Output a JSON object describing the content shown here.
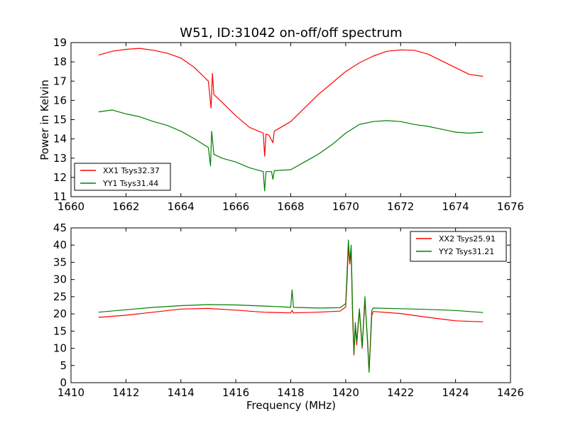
{
  "chart_data": [
    {
      "type": "line",
      "title": "W51, ID:31042 on-off/off spectrum",
      "xlabel": "",
      "ylabel": "Power in Kelvin",
      "xlim": [
        1660,
        1676
      ],
      "ylim": [
        11,
        19
      ],
      "xticks": [
        "1660",
        "1662",
        "1664",
        "1666",
        "1668",
        "1670",
        "1672",
        "1674",
        "1676"
      ],
      "yticks": [
        "11",
        "12",
        "13",
        "14",
        "15",
        "16",
        "17",
        "18",
        "19"
      ],
      "legend_position": "lower-left",
      "grid": false,
      "series": [
        {
          "name": "XX1 Tsys32.37",
          "color": "#ff0000",
          "points": [
            [
              1661.0,
              18.35
            ],
            [
              1661.5,
              18.55
            ],
            [
              1662.0,
              18.65
            ],
            [
              1662.5,
              18.7
            ],
            [
              1663.0,
              18.6
            ],
            [
              1663.5,
              18.45
            ],
            [
              1664.0,
              18.2
            ],
            [
              1664.5,
              17.7
            ],
            [
              1665.0,
              17.0
            ],
            [
              1665.1,
              15.6
            ],
            [
              1665.15,
              17.4
            ],
            [
              1665.2,
              16.3
            ],
            [
              1665.5,
              15.9
            ],
            [
              1666.0,
              15.2
            ],
            [
              1666.5,
              14.6
            ],
            [
              1667.0,
              14.3
            ],
            [
              1667.05,
              13.1
            ],
            [
              1667.1,
              14.25
            ],
            [
              1667.2,
              14.2
            ],
            [
              1667.35,
              13.8
            ],
            [
              1667.4,
              14.4
            ],
            [
              1668.0,
              14.9
            ],
            [
              1668.5,
              15.6
            ],
            [
              1669.0,
              16.3
            ],
            [
              1669.5,
              16.9
            ],
            [
              1670.0,
              17.5
            ],
            [
              1670.5,
              17.95
            ],
            [
              1671.0,
              18.3
            ],
            [
              1671.5,
              18.55
            ],
            [
              1672.0,
              18.62
            ],
            [
              1672.5,
              18.6
            ],
            [
              1673.0,
              18.4
            ],
            [
              1673.5,
              18.05
            ],
            [
              1674.0,
              17.7
            ],
            [
              1674.5,
              17.35
            ],
            [
              1675.0,
              17.25
            ]
          ]
        },
        {
          "name": "YY1 Tsys31.44",
          "color": "#008000",
          "points": [
            [
              1661.0,
              15.4
            ],
            [
              1661.5,
              15.5
            ],
            [
              1662.0,
              15.3
            ],
            [
              1662.5,
              15.15
            ],
            [
              1663.0,
              14.9
            ],
            [
              1663.5,
              14.7
            ],
            [
              1664.0,
              14.4
            ],
            [
              1664.5,
              14.0
            ],
            [
              1665.0,
              13.55
            ],
            [
              1665.08,
              12.6
            ],
            [
              1665.12,
              14.4
            ],
            [
              1665.2,
              13.2
            ],
            [
              1665.5,
              13.0
            ],
            [
              1666.0,
              12.8
            ],
            [
              1666.5,
              12.5
            ],
            [
              1667.0,
              12.3
            ],
            [
              1667.05,
              11.3
            ],
            [
              1667.1,
              12.3
            ],
            [
              1667.3,
              12.3
            ],
            [
              1667.35,
              11.9
            ],
            [
              1667.4,
              12.35
            ],
            [
              1668.0,
              12.4
            ],
            [
              1668.5,
              12.8
            ],
            [
              1669.0,
              13.2
            ],
            [
              1669.5,
              13.7
            ],
            [
              1670.0,
              14.3
            ],
            [
              1670.5,
              14.75
            ],
            [
              1671.0,
              14.9
            ],
            [
              1671.5,
              14.95
            ],
            [
              1672.0,
              14.9
            ],
            [
              1672.5,
              14.75
            ],
            [
              1673.0,
              14.65
            ],
            [
              1673.5,
              14.5
            ],
            [
              1674.0,
              14.35
            ],
            [
              1674.5,
              14.3
            ],
            [
              1675.0,
              14.35
            ]
          ]
        }
      ]
    },
    {
      "type": "line",
      "title": "",
      "xlabel": "Frequency (MHz)",
      "ylabel": "",
      "xlim": [
        1410,
        1426
      ],
      "ylim": [
        0,
        45
      ],
      "xticks": [
        "1410",
        "1412",
        "1414",
        "1416",
        "1418",
        "1420",
        "1422",
        "1424",
        "1426"
      ],
      "yticks": [
        "0",
        "5",
        "10",
        "15",
        "20",
        "25",
        "30",
        "35",
        "40",
        "45"
      ],
      "legend_position": "upper-right",
      "grid": false,
      "series": [
        {
          "name": "XX2 Tsys25.91",
          "color": "#ff0000",
          "points": [
            [
              1411.0,
              19.0
            ],
            [
              1412.0,
              19.6
            ],
            [
              1413.0,
              20.5
            ],
            [
              1414.0,
              21.4
            ],
            [
              1415.0,
              21.6
            ],
            [
              1416.0,
              21.1
            ],
            [
              1417.0,
              20.5
            ],
            [
              1418.0,
              20.3
            ],
            [
              1418.05,
              21.0
            ],
            [
              1418.1,
              20.3
            ],
            [
              1419.0,
              20.5
            ],
            [
              1419.8,
              20.8
            ],
            [
              1420.0,
              22.0
            ],
            [
              1420.05,
              30.0
            ],
            [
              1420.1,
              39.5
            ],
            [
              1420.15,
              34.5
            ],
            [
              1420.2,
              38.0
            ],
            [
              1420.25,
              20.0
            ],
            [
              1420.3,
              8.0
            ],
            [
              1420.35,
              16.5
            ],
            [
              1420.4,
              11.0
            ],
            [
              1420.5,
              21.0
            ],
            [
              1420.6,
              10.0
            ],
            [
              1420.7,
              24.0
            ],
            [
              1420.8,
              12.0
            ],
            [
              1420.85,
              3.5
            ],
            [
              1420.9,
              11.0
            ],
            [
              1420.95,
              19.5
            ],
            [
              1421.0,
              20.7
            ],
            [
              1422.0,
              20.1
            ],
            [
              1423.0,
              19.0
            ],
            [
              1424.0,
              18.0
            ],
            [
              1425.0,
              17.7
            ]
          ]
        },
        {
          "name": "YY2 Tsys31.21",
          "color": "#008000",
          "points": [
            [
              1411.0,
              20.5
            ],
            [
              1412.0,
              21.2
            ],
            [
              1413.0,
              21.9
            ],
            [
              1414.0,
              22.4
            ],
            [
              1415.0,
              22.7
            ],
            [
              1416.0,
              22.6
            ],
            [
              1417.0,
              22.3
            ],
            [
              1417.8,
              22.0
            ],
            [
              1418.0,
              21.9
            ],
            [
              1418.05,
              27.0
            ],
            [
              1418.1,
              21.9
            ],
            [
              1419.0,
              21.7
            ],
            [
              1419.8,
              21.8
            ],
            [
              1420.0,
              23.0
            ],
            [
              1420.05,
              32.0
            ],
            [
              1420.1,
              41.5
            ],
            [
              1420.15,
              35.0
            ],
            [
              1420.2,
              40.0
            ],
            [
              1420.25,
              22.0
            ],
            [
              1420.3,
              8.5
            ],
            [
              1420.35,
              17.5
            ],
            [
              1420.4,
              12.0
            ],
            [
              1420.5,
              21.5
            ],
            [
              1420.6,
              10.5
            ],
            [
              1420.7,
              25.0
            ],
            [
              1420.8,
              11.0
            ],
            [
              1420.85,
              3.0
            ],
            [
              1420.9,
              12.0
            ],
            [
              1420.95,
              21.0
            ],
            [
              1421.0,
              21.7
            ],
            [
              1422.0,
              21.5
            ],
            [
              1423.0,
              21.3
            ],
            [
              1424.0,
              21.0
            ],
            [
              1425.0,
              20.4
            ]
          ]
        }
      ]
    }
  ]
}
